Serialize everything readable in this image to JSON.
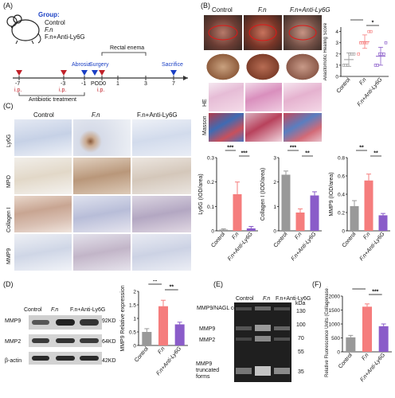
{
  "panels": {
    "A": "(A)",
    "B": "(B)",
    "C": "(C)",
    "D": "(D)",
    "E": "(E)",
    "F": "(F)"
  },
  "panel_a": {
    "group_title": "Group:",
    "groups": [
      "Control",
      "F.n",
      "F.n+Anti-Ly6G"
    ],
    "rectal_enema": "Rectal enema",
    "abrosia": "Abrosia",
    "surgery": "Surgery",
    "sacrifice": "Sacrifice",
    "timeline_ticks": [
      "-7",
      "-3",
      "-1",
      "POD0",
      "1",
      "3",
      "7"
    ],
    "ip_labels": [
      "i.p.",
      "i.p.",
      "i.p."
    ],
    "antibiotic": "Antibiotic treatment"
  },
  "panel_b": {
    "columns": [
      "Control",
      "F.n",
      "F.n+Anti-Ly6G"
    ],
    "rows": [
      "HE",
      "Masson"
    ]
  },
  "panel_c": {
    "columns": [
      "Control",
      "F.n",
      "F.n+Anti-Ly6G"
    ],
    "rows": [
      "Ly6G",
      "MPO",
      "Collagen I",
      "MMP9"
    ]
  },
  "panel_d": {
    "lanes": [
      "Control",
      "F.n",
      "F.n+Anti-Ly6G"
    ],
    "bands": [
      "MMP9",
      "MMP2",
      "β-actin"
    ],
    "sizes": [
      "92KD",
      "64KD",
      "42KD"
    ]
  },
  "panel_e": {
    "lanes": [
      "Control",
      "F.n",
      "F.n+Anti-Ly6G"
    ],
    "labels": [
      "MMP9/NAGL complex",
      "MMP9",
      "MMP2",
      "MMP9 truncated forms"
    ],
    "kda_title": "kDa",
    "kda": [
      "130",
      "100",
      "70",
      "55",
      "35"
    ]
  },
  "significance": {
    "ss": "**",
    "s": "*",
    "sss": "***"
  },
  "chart_data": [
    {
      "type": "scatter",
      "ylabel": "Anastomotic Healing Score",
      "categories": [
        "Control",
        "F.n",
        "F.n+Anti-Ly6G"
      ],
      "means": [
        1.5,
        3.1,
        1.8
      ],
      "errors": [
        0.6,
        0.6,
        0.8
      ],
      "points": [
        [
          1,
          1,
          1,
          2,
          2,
          2
        ],
        [
          2,
          3,
          3,
          3,
          3,
          4,
          4
        ],
        [
          1,
          1,
          2,
          2,
          2,
          3
        ]
      ],
      "yticks": [
        0,
        1,
        2,
        3,
        4
      ],
      "ylim": [
        0,
        4.4
      ],
      "significance": [
        [
          "Control",
          "F.n",
          "**"
        ],
        [
          "F.n",
          "F.n+Anti-Ly6G",
          "*"
        ]
      ]
    },
    {
      "type": "bar",
      "ylabel": "Ly6G (IOD/area)",
      "categories": [
        "Control",
        "F.n",
        "F.n+Anti-Ly6G"
      ],
      "values": [
        0.005,
        0.15,
        0.01
      ],
      "errors": [
        0.003,
        0.05,
        0.008
      ],
      "yticks": [
        0.0,
        0.1,
        0.2,
        0.3
      ],
      "ylim": [
        0,
        0.3
      ],
      "significance": [
        [
          "Control",
          "F.n",
          "***"
        ],
        [
          "F.n",
          "F.n+Anti-Ly6G",
          "***"
        ]
      ]
    },
    {
      "type": "bar",
      "ylabel": "Collagen I (IOD/area)",
      "categories": [
        "Control",
        "F.n",
        "F.n+Anti-Ly6G"
      ],
      "values": [
        2.3,
        0.75,
        1.45
      ],
      "errors": [
        0.15,
        0.15,
        0.15
      ],
      "yticks": [
        0,
        1,
        2,
        3
      ],
      "ylim": [
        0,
        3
      ],
      "significance": [
        [
          "Control",
          "F.n",
          "***"
        ],
        [
          "F.n",
          "F.n+Anti-Ly6G",
          "**"
        ]
      ]
    },
    {
      "type": "bar",
      "ylabel": "MMP9 (IOD/area)",
      "categories": [
        "Control",
        "F.n",
        "F.n+Anti-Ly6G"
      ],
      "values": [
        0.27,
        0.55,
        0.17
      ],
      "errors": [
        0.06,
        0.07,
        0.02
      ],
      "yticks": [
        0.0,
        0.2,
        0.4,
        0.6,
        0.8
      ],
      "ylim": [
        0,
        0.8
      ],
      "significance": [
        [
          "Control",
          "F.n",
          "**"
        ],
        [
          "F.n",
          "F.n+Anti-Ly6G",
          "**"
        ]
      ]
    },
    {
      "type": "bar",
      "ylabel": "MMP9 Relative expression",
      "categories": [
        "Control",
        "F.n",
        "F.n+Anti-Ly6G"
      ],
      "values": [
        0.5,
        1.45,
        0.78
      ],
      "errors": [
        0.12,
        0.22,
        0.08
      ],
      "yticks": [
        0.0,
        0.5,
        1.0,
        1.5,
        2.0
      ],
      "ylim": [
        0,
        2.0
      ],
      "significance": [
        [
          "Control",
          "F.n",
          "**"
        ],
        [
          "F.n",
          "F.n+Anti-Ly6G",
          "**"
        ]
      ]
    },
    {
      "type": "bar",
      "ylabel": "Relative Fluorescence Units (Collagenase activity)",
      "categories": [
        "Control",
        "F.n",
        "F.n+Anti-Ly6G"
      ],
      "values": [
        520,
        1620,
        920
      ],
      "errors": [
        70,
        100,
        80
      ],
      "yticks": [
        0,
        500,
        1000,
        1500,
        2000
      ],
      "ylim": [
        0,
        2000
      ],
      "significance": [
        [
          "Control",
          "F.n",
          "***"
        ],
        [
          "F.n",
          "F.n+Anti-Ly6G",
          "***"
        ]
      ]
    }
  ],
  "colors": {
    "control": "#999999",
    "fn": "#f57d7d",
    "anti": "#8a5cc9",
    "red": "#c0222a",
    "blue": "#1a3fc4"
  }
}
